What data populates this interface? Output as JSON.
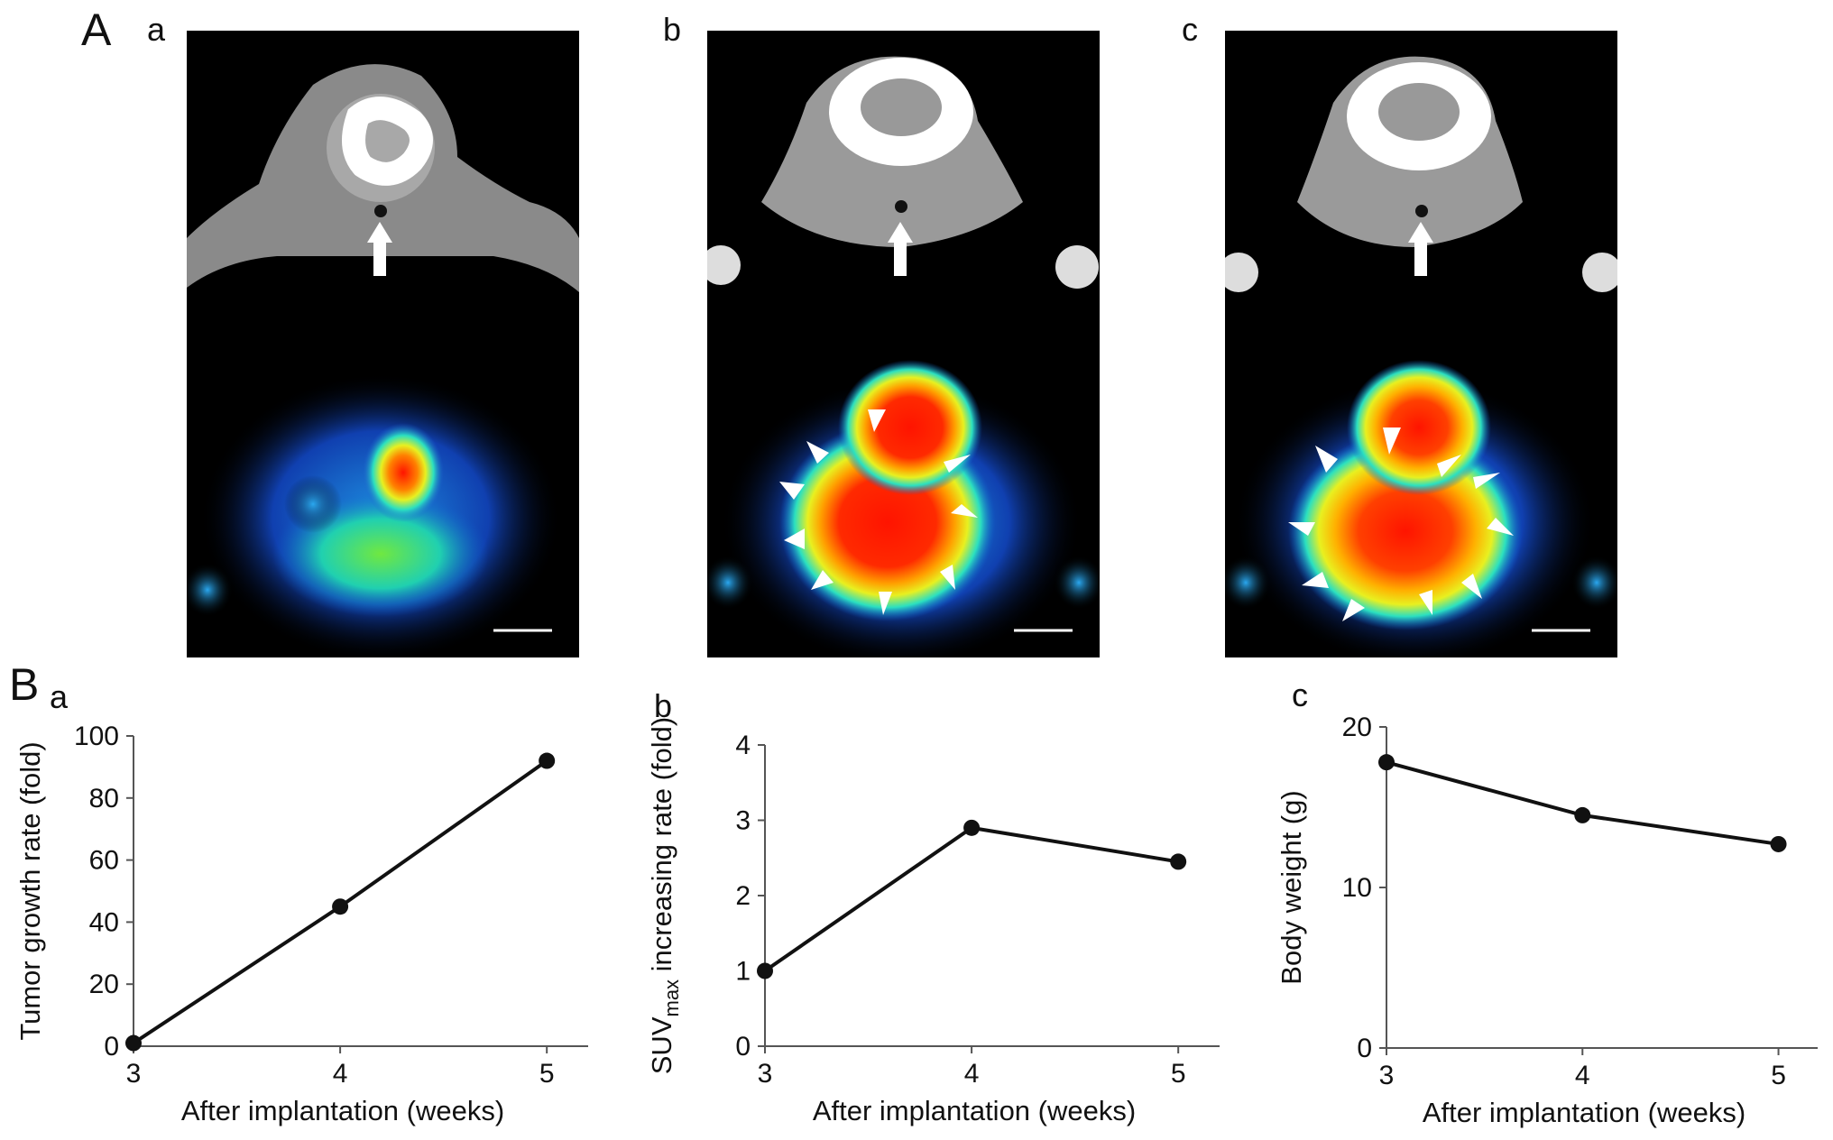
{
  "figure": {
    "panel_A_label": "A",
    "panel_B_label": "B",
    "subpanels": [
      "a",
      "b",
      "c"
    ]
  },
  "images": [
    {
      "label": "a",
      "hotspot_colors": [
        "#0a2a8a",
        "#1e8fe0",
        "#2be0c0",
        "#8ef03a",
        "#e8f020",
        "#ff2a00"
      ]
    },
    {
      "label": "b",
      "hotspot_colors": [
        "#0a2a8a",
        "#1e8fe0",
        "#2be0c0",
        "#8ef03a",
        "#e8f020",
        "#ff2a00"
      ]
    },
    {
      "label": "c",
      "hotspot_colors": [
        "#0a2a8a",
        "#1e8fe0",
        "#2be0c0",
        "#8ef03a",
        "#e8f020",
        "#ff2a00"
      ]
    }
  ],
  "chart_data": [
    {
      "type": "line",
      "panel": "a",
      "x": [
        3,
        4,
        5
      ],
      "y": [
        1,
        45,
        92
      ],
      "xlabel": "After implantation (weeks)",
      "ylabel": "Tumor growth rate (fold)",
      "xticks": [
        "3",
        "4",
        "5"
      ],
      "yticks": [
        "0",
        "20",
        "40",
        "60",
        "80",
        "100"
      ],
      "ylim": [
        0,
        100
      ],
      "xlim": [
        3,
        5.2
      ]
    },
    {
      "type": "line",
      "panel": "b",
      "x": [
        3,
        4,
        5
      ],
      "y": [
        1.0,
        2.9,
        2.45
      ],
      "xlabel": "After implantation (weeks)",
      "ylabel_main": "SUV",
      "ylabel_sub": "max",
      "ylabel_rest": " increasing rate (fold)",
      "xticks": [
        "3",
        "4",
        "5"
      ],
      "yticks": [
        "0",
        "1",
        "2",
        "3",
        "4"
      ],
      "ylim": [
        0,
        4
      ],
      "xlim": [
        3,
        5.2
      ]
    },
    {
      "type": "line",
      "panel": "c",
      "x": [
        3,
        4,
        5
      ],
      "y": [
        17.8,
        14.5,
        12.7
      ],
      "xlabel": "After implantation (weeks)",
      "ylabel": "Body weight (g)",
      "xticks": [
        "3",
        "4",
        "5"
      ],
      "yticks": [
        "0",
        "10",
        "20"
      ],
      "ylim": [
        0,
        20
      ],
      "xlim": [
        3,
        5.2
      ]
    }
  ]
}
